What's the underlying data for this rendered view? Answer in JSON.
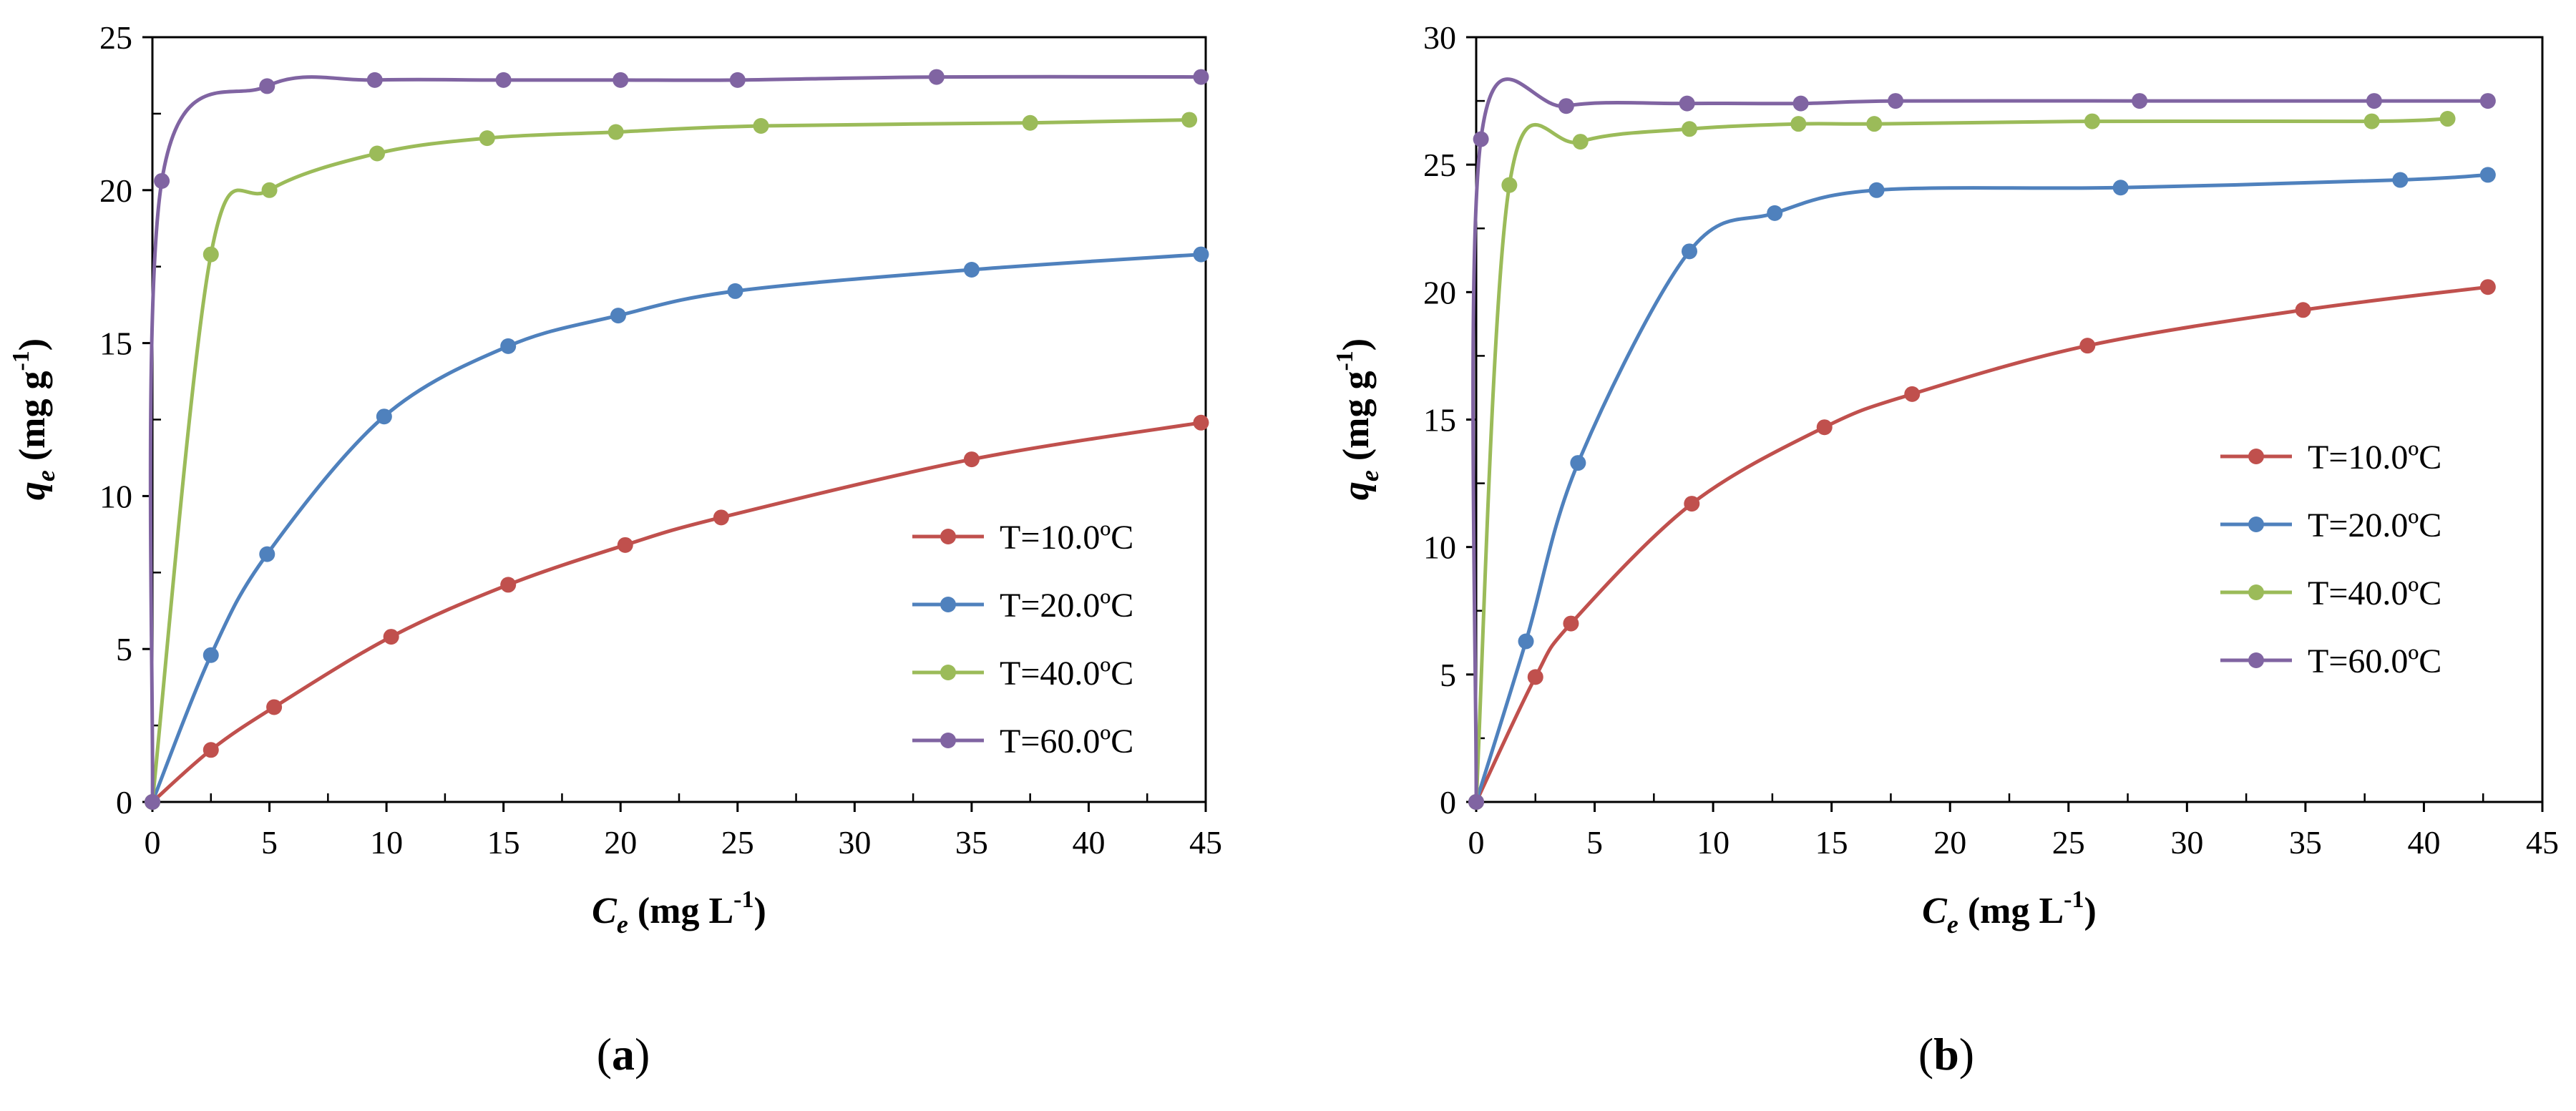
{
  "chart_data": [
    {
      "type": "line",
      "panel_label": "(a)",
      "panel_letter": "a",
      "xlim": [
        0,
        45
      ],
      "ylim": [
        0,
        25
      ],
      "xticks": [
        0,
        5,
        10,
        15,
        20,
        25,
        30,
        35,
        40,
        45
      ],
      "yticks": [
        0,
        5,
        10,
        15,
        20,
        25
      ],
      "xlabel": {
        "symbol": "C",
        "subscript": "e",
        "units": "(mg L",
        "exponent": "-1",
        "close": ")"
      },
      "ylabel": {
        "symbol": "q",
        "subscript": "e",
        "units": "(mg g",
        "exponent": "-1",
        "close": ")"
      },
      "legend_position": "lower-right",
      "series": [
        {
          "name": "T=10.0ºC",
          "color": "#C0504D",
          "x": [
            0,
            2.5,
            5.2,
            10.2,
            15.2,
            20.2,
            24.3,
            35,
            44.8
          ],
          "y": [
            0,
            1.7,
            3.1,
            5.4,
            7.1,
            8.4,
            9.3,
            11.2,
            12.4
          ]
        },
        {
          "name": "T=20.0ºC",
          "color": "#4F81BD",
          "x": [
            0,
            2.5,
            4.9,
            9.9,
            15.2,
            19.9,
            24.9,
            35,
            44.8
          ],
          "y": [
            0,
            4.8,
            8.1,
            12.6,
            14.9,
            15.9,
            16.7,
            17.4,
            17.9
          ]
        },
        {
          "name": "T=40.0ºC",
          "color": "#9BBB59",
          "x": [
            0,
            2.5,
            5.0,
            9.6,
            14.3,
            19.8,
            26.0,
            37.5,
            44.3
          ],
          "y": [
            0,
            17.9,
            20.0,
            21.2,
            21.7,
            21.9,
            22.1,
            22.2,
            22.3
          ]
        },
        {
          "name": "T=60.0ºC",
          "color": "#8064A2",
          "x": [
            0,
            0.4,
            4.9,
            9.5,
            15.0,
            20.0,
            25.0,
            33.5,
            44.8
          ],
          "y": [
            0,
            20.3,
            23.4,
            23.6,
            23.6,
            23.6,
            23.6,
            23.7,
            23.7
          ]
        }
      ]
    },
    {
      "type": "line",
      "panel_label": "(b)",
      "panel_letter": "b",
      "xlim": [
        0,
        45
      ],
      "ylim": [
        0,
        30
      ],
      "xticks": [
        0,
        5,
        10,
        15,
        20,
        25,
        30,
        35,
        40,
        45
      ],
      "yticks": [
        0,
        5,
        10,
        15,
        20,
        25,
        30
      ],
      "xlabel": {
        "symbol": "C",
        "subscript": "e",
        "units": "(mg L",
        "exponent": "-1",
        "close": ")"
      },
      "ylabel": {
        "symbol": "q",
        "subscript": "e",
        "units": "(mg g",
        "exponent": "-1",
        "close": ")"
      },
      "legend_position": "center-right",
      "series": [
        {
          "name": "T=10.0ºC",
          "color": "#C0504D",
          "x": [
            0,
            2.5,
            4.0,
            9.1,
            14.7,
            18.4,
            25.8,
            34.9,
            42.7
          ],
          "y": [
            0,
            4.9,
            7.0,
            11.7,
            14.7,
            16.0,
            17.9,
            19.3,
            20.2
          ]
        },
        {
          "name": "T=20.0ºC",
          "color": "#4F81BD",
          "x": [
            0,
            2.1,
            4.3,
            9.0,
            12.6,
            16.9,
            27.2,
            39.0,
            42.7
          ],
          "y": [
            0,
            6.3,
            13.3,
            21.6,
            23.1,
            24.0,
            24.1,
            24.4,
            24.6
          ]
        },
        {
          "name": "T=40.0ºC",
          "color": "#9BBB59",
          "x": [
            0,
            1.4,
            4.4,
            9.0,
            13.6,
            16.8,
            26.0,
            37.8,
            41.0
          ],
          "y": [
            0,
            24.2,
            25.9,
            26.4,
            26.6,
            26.6,
            26.7,
            26.7,
            26.8
          ]
        },
        {
          "name": "T=60.0ºC",
          "color": "#8064A2",
          "x": [
            0,
            0.2,
            3.8,
            8.9,
            13.7,
            17.7,
            28.0,
            37.9,
            42.7
          ],
          "y": [
            0,
            26.0,
            27.3,
            27.4,
            27.4,
            27.5,
            27.5,
            27.5,
            27.5
          ]
        }
      ]
    }
  ]
}
